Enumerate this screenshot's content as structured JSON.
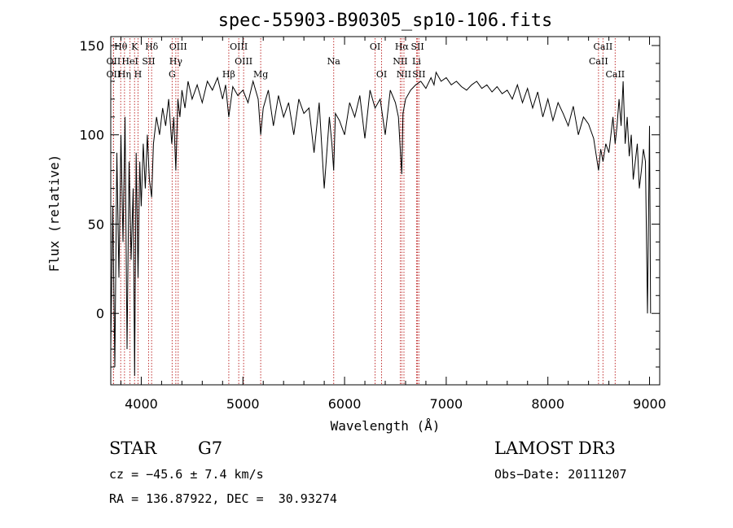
{
  "chart_data": {
    "type": "line",
    "title": "spec-55903-B90305_sp10-106.fits",
    "xlabel": "Wavelength (Å)",
    "ylabel": "Flux (relative)",
    "xlim": [
      3700,
      9100
    ],
    "ylim": [
      -40,
      155
    ],
    "x_ticks": [
      4000,
      5000,
      6000,
      7000,
      8000,
      9000
    ],
    "x_minor_step": 200,
    "y_ticks": [
      0,
      50,
      100,
      150
    ],
    "y_minor_step": 10,
    "grid": false,
    "series": [
      {
        "name": "flux",
        "color": "#000000",
        "x": [
          3700,
          3720,
          3740,
          3760,
          3780,
          3800,
          3820,
          3840,
          3860,
          3880,
          3900,
          3920,
          3935,
          3950,
          3968,
          3985,
          4000,
          4020,
          4040,
          4060,
          4080,
          4102,
          4120,
          4150,
          4180,
          4210,
          4240,
          4270,
          4300,
          4320,
          4340,
          4360,
          4380,
          4400,
          4430,
          4460,
          4500,
          4550,
          4600,
          4650,
          4700,
          4750,
          4800,
          4830,
          4861,
          4900,
          4950,
          5000,
          5050,
          5100,
          5150,
          5175,
          5200,
          5250,
          5300,
          5350,
          5400,
          5450,
          5500,
          5550,
          5600,
          5650,
          5700,
          5750,
          5800,
          5850,
          5875,
          5893,
          5910,
          5950,
          6000,
          6050,
          6100,
          6150,
          6200,
          6250,
          6300,
          6350,
          6400,
          6450,
          6500,
          6530,
          6550,
          6563,
          6575,
          6600,
          6650,
          6700,
          6750,
          6800,
          6850,
          6880,
          6900,
          6950,
          7000,
          7050,
          7100,
          7150,
          7200,
          7250,
          7300,
          7350,
          7400,
          7450,
          7500,
          7550,
          7600,
          7650,
          7700,
          7750,
          7800,
          7850,
          7900,
          7950,
          8000,
          8050,
          8100,
          8150,
          8200,
          8250,
          8300,
          8350,
          8400,
          8450,
          8498,
          8520,
          8542,
          8570,
          8600,
          8620,
          8640,
          8662,
          8680,
          8700,
          8720,
          8740,
          8760,
          8780,
          8800,
          8820,
          8840,
          8860,
          8880,
          8900,
          8920,
          8940,
          8960,
          8980,
          9000,
          9010
        ],
        "values": [
          -20,
          60,
          -30,
          90,
          20,
          100,
          40,
          110,
          -20,
          85,
          30,
          70,
          -35,
          90,
          20,
          85,
          60,
          95,
          70,
          100,
          75,
          65,
          95,
          110,
          100,
          115,
          105,
          120,
          95,
          110,
          80,
          120,
          110,
          125,
          115,
          130,
          120,
          128,
          118,
          130,
          125,
          132,
          120,
          128,
          110,
          127,
          122,
          125,
          118,
          130,
          120,
          100,
          115,
          125,
          105,
          122,
          110,
          118,
          100,
          120,
          112,
          115,
          90,
          118,
          70,
          110,
          95,
          80,
          112,
          108,
          100,
          118,
          110,
          122,
          98,
          125,
          115,
          120,
          100,
          125,
          118,
          110,
          90,
          78,
          112,
          120,
          125,
          128,
          130,
          126,
          132,
          128,
          135,
          130,
          132,
          128,
          130,
          127,
          125,
          128,
          130,
          126,
          128,
          124,
          127,
          123,
          125,
          120,
          128,
          118,
          126,
          115,
          124,
          110,
          120,
          108,
          118,
          112,
          105,
          116,
          100,
          110,
          106,
          98,
          80,
          92,
          85,
          95,
          90,
          100,
          110,
          95,
          105,
          120,
          105,
          130,
          95,
          110,
          88,
          100,
          75,
          85,
          95,
          70,
          80,
          92,
          85,
          0,
          105,
          0
        ]
      }
    ],
    "lines": [
      {
        "name": "Hθ",
        "x": 3798,
        "row": 1
      },
      {
        "name": "OII",
        "x": 3727,
        "row": 2
      },
      {
        "name": "OII",
        "x": 3727,
        "row": 3
      },
      {
        "name": "K",
        "x": 3934,
        "row": 1
      },
      {
        "name": "HeI",
        "x": 3889,
        "row": 2
      },
      {
        "name": "Hη",
        "x": 3835,
        "row": 3
      },
      {
        "name": "H",
        "x": 3968,
        "row": 3
      },
      {
        "name": "Hδ",
        "x": 4102,
        "row": 1
      },
      {
        "name": "SII",
        "x": 4072,
        "row": 2
      },
      {
        "name": "OIII",
        "x": 4363,
        "row": 1
      },
      {
        "name": "Hγ",
        "x": 4340,
        "row": 2
      },
      {
        "name": "G",
        "x": 4304,
        "row": 3
      },
      {
        "name": "Hβ",
        "x": 4861,
        "row": 3
      },
      {
        "name": "OIII",
        "x": 4959,
        "row": 1
      },
      {
        "name": "OIII",
        "x": 5007,
        "row": 2
      },
      {
        "name": "Mg",
        "x": 5175,
        "row": 3
      },
      {
        "name": "Na",
        "x": 5893,
        "row": 2
      },
      {
        "name": "OI",
        "x": 6300,
        "row": 1
      },
      {
        "name": "OI",
        "x": 6364,
        "row": 3
      },
      {
        "name": "Hα",
        "x": 6563,
        "row": 1
      },
      {
        "name": "NII",
        "x": 6548,
        "row": 2
      },
      {
        "name": "NII",
        "x": 6584,
        "row": 3
      },
      {
        "name": "SII",
        "x": 6717,
        "row": 1
      },
      {
        "name": "Li",
        "x": 6708,
        "row": 2
      },
      {
        "name": "SII",
        "x": 6731,
        "row": 3
      },
      {
        "name": "CaII",
        "x": 8542,
        "row": 1
      },
      {
        "name": "CaII",
        "x": 8498,
        "row": 2
      },
      {
        "name": "CaII",
        "x": 8662,
        "row": 3
      }
    ]
  },
  "info": {
    "object_class": "STAR",
    "subclass": "G7",
    "survey": "LAMOST DR3",
    "cz": "cz = −45.6 ± 7.4 km/s",
    "obs_date": "Obs−Date: 20111207",
    "coords": "RA = 136.87922, DEC =  30.93274"
  }
}
